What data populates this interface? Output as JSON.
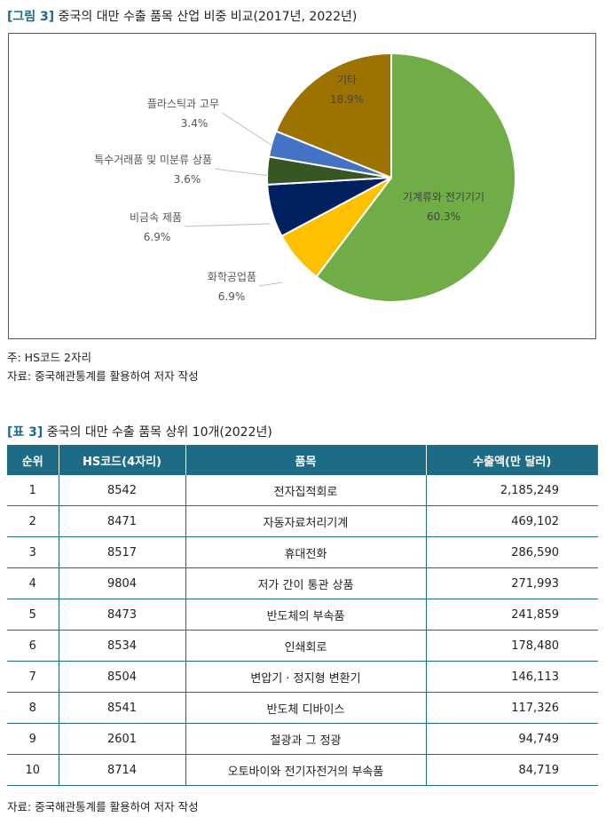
{
  "figure": {
    "title_tag": "[그림 3]",
    "title_text": "중국의 대만 수출 품목 산업 비중 비교(2017년, 2022년)",
    "note1": "주: HS코드 2자리",
    "note2": "자료: 중국해관통계를 활용하여 저자 작성"
  },
  "chart_data": {
    "type": "pie",
    "title": "중국의 대만 수출 품목 산업 비중 비교(2017년, 2022년)",
    "unit": "%",
    "slices": [
      {
        "label": "기계류와 전기기기",
        "value": 60.3,
        "value_label": "60.3%",
        "color": "#70ad47"
      },
      {
        "label": "화학공업품",
        "value": 6.9,
        "value_label": "6.9%",
        "color": "#ffc000"
      },
      {
        "label": "비금속 제품",
        "value": 6.9,
        "value_label": "6.9%",
        "color": "#002060"
      },
      {
        "label": "특수거래품 및 미분류 상품",
        "value": 3.6,
        "value_label": "3.6%",
        "color": "#375623"
      },
      {
        "label": "플라스틱과 고무",
        "value": 3.4,
        "value_label": "3.4%",
        "color": "#4472c4"
      },
      {
        "label": "기타",
        "value": 18.9,
        "value_label": "18.9%",
        "color": "#9c7300"
      }
    ]
  },
  "table": {
    "title_tag": "[표 3]",
    "title_text": "중국의 대만 수출 품목 상위 10개(2022년)",
    "headers": {
      "rank": "순위",
      "hs": "HS코드(4자리)",
      "item": "품목",
      "amount": "수출액(만 달러)"
    },
    "rows": [
      {
        "rank": "1",
        "hs": "8542",
        "item": "전자집적회로",
        "amount": "2,185,249"
      },
      {
        "rank": "2",
        "hs": "8471",
        "item": "자동자료처리기계",
        "amount": "469,102"
      },
      {
        "rank": "3",
        "hs": "8517",
        "item": "휴대전화",
        "amount": "286,590"
      },
      {
        "rank": "4",
        "hs": "9804",
        "item": "저가 간이 통관 상품",
        "amount": "271,993"
      },
      {
        "rank": "5",
        "hs": "8473",
        "item": "반도체의 부속품",
        "amount": "241,859"
      },
      {
        "rank": "6",
        "hs": "8534",
        "item": "인쇄회로",
        "amount": "178,480"
      },
      {
        "rank": "7",
        "hs": "8504",
        "item": "변압기 · 정지형 변환기",
        "amount": "146,113"
      },
      {
        "rank": "8",
        "hs": "8541",
        "item": "반도체 디바이스",
        "amount": "117,326"
      },
      {
        "rank": "9",
        "hs": "2601",
        "item": "철광과 그 정광",
        "amount": "94,749"
      },
      {
        "rank": "10",
        "hs": "8714",
        "item": "오토바이와 전기자전거의 부속품",
        "amount": "84,719"
      }
    ],
    "source": "자료: 중국해관통계를 활용하여 저자 작성"
  }
}
